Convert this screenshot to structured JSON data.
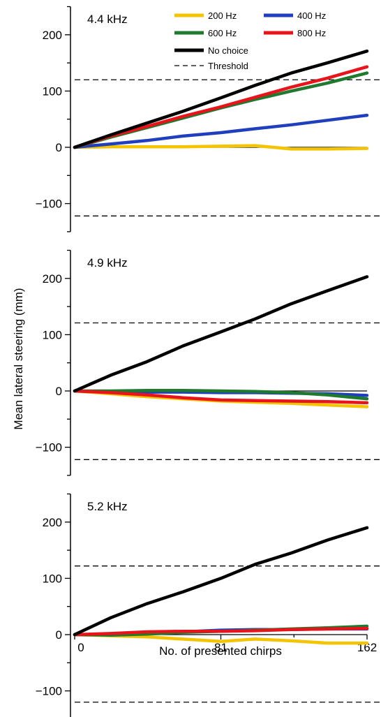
{
  "figure": {
    "ylabel": "Mean lateral steering (mm)",
    "xlabel": "No. of presented chirps"
  },
  "legend": {
    "placement": "top-right of first panel",
    "items": [
      {
        "name": "200 Hz",
        "color": "#f5c400",
        "dashed": false
      },
      {
        "name": "400 Hz",
        "color": "#1f3fbf",
        "dashed": false
      },
      {
        "name": "600 Hz",
        "color": "#1f7a2e",
        "dashed": false
      },
      {
        "name": "800 Hz",
        "color": "#e8141c",
        "dashed": false
      },
      {
        "name": "No choice",
        "color": "#000000",
        "dashed": false
      },
      {
        "name": "Threshold",
        "color": "#000000",
        "dashed": true
      }
    ]
  },
  "chart_data": [
    {
      "type": "line",
      "panel_label": "4.4 kHz",
      "xlim": [
        0,
        162
      ],
      "ylim": [
        -150,
        250
      ],
      "yticks": [
        -100,
        0,
        100,
        200
      ],
      "xticks": [],
      "threshold": [
        120,
        -122
      ],
      "x": [
        0,
        20,
        40,
        60,
        81,
        100,
        120,
        140,
        162
      ],
      "series": [
        {
          "name": "200 Hz",
          "color": "#f5c400",
          "values": [
            0,
            1,
            1,
            1,
            2,
            3,
            -3,
            -3,
            -2
          ]
        },
        {
          "name": "400 Hz",
          "color": "#1f3fbf",
          "values": [
            0,
            6,
            12,
            20,
            26,
            33,
            40,
            48,
            57
          ]
        },
        {
          "name": "600 Hz",
          "color": "#1f7a2e",
          "values": [
            0,
            18,
            35,
            52,
            70,
            85,
            100,
            114,
            132
          ]
        },
        {
          "name": "800 Hz",
          "color": "#e8141c",
          "values": [
            0,
            20,
            37,
            55,
            72,
            89,
            107,
            123,
            143
          ]
        },
        {
          "name": "No choice",
          "color": "#000000",
          "values": [
            0,
            22,
            43,
            64,
            88,
            110,
            132,
            150,
            171
          ]
        }
      ]
    },
    {
      "type": "line",
      "panel_label": "4.9 kHz",
      "xlim": [
        0,
        162
      ],
      "ylim": [
        -150,
        250
      ],
      "yticks": [
        -100,
        0,
        100,
        200
      ],
      "xticks": [],
      "threshold": [
        121,
        -122
      ],
      "x": [
        0,
        20,
        40,
        60,
        81,
        100,
        120,
        140,
        162
      ],
      "series": [
        {
          "name": "200 Hz",
          "color": "#f5c400",
          "values": [
            0,
            -5,
            -10,
            -14,
            -18,
            -20,
            -22,
            -25,
            -28
          ]
        },
        {
          "name": "400 Hz",
          "color": "#1f3fbf",
          "values": [
            0,
            -1,
            -2,
            -2,
            -3,
            -3,
            -4,
            -5,
            -8
          ]
        },
        {
          "name": "600 Hz",
          "color": "#1f7a2e",
          "values": [
            0,
            0,
            1,
            1,
            0,
            -1,
            -3,
            -7,
            -14
          ]
        },
        {
          "name": "800 Hz",
          "color": "#e8141c",
          "values": [
            0,
            -3,
            -7,
            -12,
            -16,
            -17,
            -18,
            -19,
            -21
          ]
        },
        {
          "name": "No choice",
          "color": "#000000",
          "values": [
            0,
            28,
            52,
            80,
            105,
            128,
            155,
            178,
            203
          ]
        }
      ]
    },
    {
      "type": "line",
      "panel_label": "5.2 kHz",
      "xlim": [
        0,
        162
      ],
      "ylim": [
        -150,
        250
      ],
      "yticks": [
        -100,
        0,
        100,
        200
      ],
      "xticks": [
        0,
        81,
        162
      ],
      "threshold": [
        122,
        -120
      ],
      "x": [
        0,
        20,
        40,
        60,
        81,
        100,
        120,
        140,
        162
      ],
      "series": [
        {
          "name": "200 Hz",
          "color": "#f5c400",
          "values": [
            0,
            -2,
            -4,
            -8,
            -12,
            -8,
            -11,
            -15,
            -15
          ]
        },
        {
          "name": "400 Hz",
          "color": "#1f3fbf",
          "values": [
            0,
            1,
            3,
            5,
            8,
            9,
            9,
            10,
            10
          ]
        },
        {
          "name": "600 Hz",
          "color": "#1f7a2e",
          "values": [
            0,
            -1,
            1,
            4,
            6,
            8,
            10,
            12,
            15
          ]
        },
        {
          "name": "800 Hz",
          "color": "#e8141c",
          "values": [
            0,
            2,
            5,
            6,
            6,
            7,
            9,
            10,
            11
          ]
        },
        {
          "name": "No choice",
          "color": "#000000",
          "values": [
            0,
            30,
            55,
            76,
            100,
            125,
            145,
            168,
            190
          ]
        }
      ]
    }
  ]
}
